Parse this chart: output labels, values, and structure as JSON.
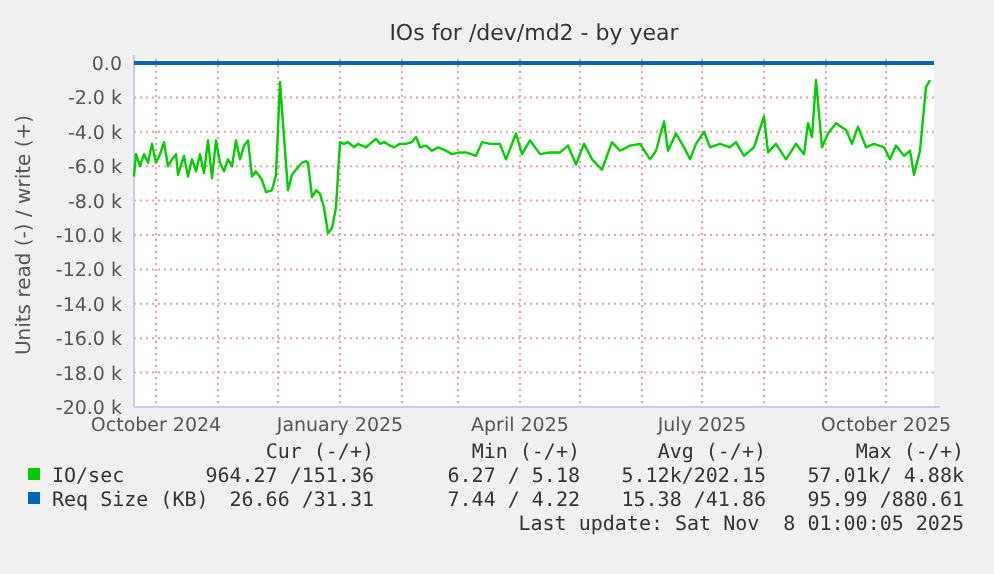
{
  "chart_data": {
    "type": "line",
    "title": "IOs for /dev/md2 - by year",
    "ylabel": "Units read (-) / write (+)",
    "xlim": [
      "2024-09-20",
      "2025-10-25"
    ],
    "xticks": [
      {
        "value": "2024-10-01",
        "label": "October 2024"
      },
      {
        "value": "2024-11-01",
        "label": null
      },
      {
        "value": "2024-12-01",
        "label": null
      },
      {
        "value": "2025-01-01",
        "label": "January 2025"
      },
      {
        "value": "2025-02-01",
        "label": null
      },
      {
        "value": "2025-03-01",
        "label": null
      },
      {
        "value": "2025-04-01",
        "label": "April 2025"
      },
      {
        "value": "2025-05-01",
        "label": null
      },
      {
        "value": "2025-06-01",
        "label": null
      },
      {
        "value": "2025-07-01",
        "label": "July 2025"
      },
      {
        "value": "2025-08-01",
        "label": null
      },
      {
        "value": "2025-09-01",
        "label": null
      },
      {
        "value": "2025-10-01",
        "label": "October 2025"
      }
    ],
    "ylim": [
      -20000,
      0
    ],
    "yticks": [
      {
        "value": 0,
        "label": "0.0"
      },
      {
        "value": -2000,
        "label": "-2.0 k"
      },
      {
        "value": -4000,
        "label": "-4.0 k"
      },
      {
        "value": -6000,
        "label": "-6.0 k"
      },
      {
        "value": -8000,
        "label": "-8.0 k"
      },
      {
        "value": -10000,
        "label": "-10.0 k"
      },
      {
        "value": -12000,
        "label": "-12.0 k"
      },
      {
        "value": -14000,
        "label": "-14.0 k"
      },
      {
        "value": -16000,
        "label": "-16.0 k"
      },
      {
        "value": -18000,
        "label": "-18.0 k"
      },
      {
        "value": -20000,
        "label": "-20.0 k"
      }
    ],
    "grid": true,
    "legend": "bottom",
    "series": [
      {
        "name": "IO/sec",
        "color": "#00cc00",
        "x": [
          "2024-09-20",
          "2024-09-21",
          "2024-09-23",
          "2024-09-25",
          "2024-09-27",
          "2024-09-29",
          "2024-10-01",
          "2024-10-03",
          "2024-10-05",
          "2024-10-07",
          "2024-10-09",
          "2024-10-11",
          "2024-10-12",
          "2024-10-15",
          "2024-10-17",
          "2024-10-19",
          "2024-10-21",
          "2024-10-23",
          "2024-10-25",
          "2024-10-27",
          "2024-10-29",
          "2024-10-31",
          "2024-11-02",
          "2024-11-04",
          "2024-11-06",
          "2024-11-08",
          "2024-11-10",
          "2024-11-12",
          "2024-11-14",
          "2024-11-16",
          "2024-11-18",
          "2024-11-20",
          "2024-11-23",
          "2024-11-25",
          "2024-11-28",
          "2024-11-30",
          "2024-12-02",
          "2024-12-04",
          "2024-12-06",
          "2024-12-08",
          "2024-12-10",
          "2024-12-13",
          "2024-12-15",
          "2024-12-16",
          "2024-12-18",
          "2024-12-20",
          "2024-12-22",
          "2024-12-24",
          "2024-12-26",
          "2024-12-28",
          "2024-12-30",
          "2025-01-01",
          "2025-01-03",
          "2025-01-05",
          "2025-01-08",
          "2025-01-10",
          "2025-01-12",
          "2025-01-14",
          "2025-01-17",
          "2025-01-19",
          "2025-01-21",
          "2025-01-23",
          "2025-01-26",
          "2025-01-28",
          "2025-01-31",
          "2025-02-03",
          "2025-02-06",
          "2025-02-08",
          "2025-02-10",
          "2025-02-13",
          "2025-02-16",
          "2025-02-19",
          "2025-02-23",
          "2025-02-26",
          "2025-03-02",
          "2025-03-05",
          "2025-03-10",
          "2025-03-13",
          "2025-03-17",
          "2025-03-22",
          "2025-03-25",
          "2025-03-30",
          "2025-04-02",
          "2025-04-06",
          "2025-04-11",
          "2025-04-16",
          "2025-04-21",
          "2025-04-25",
          "2025-04-29",
          "2025-05-03",
          "2025-05-07",
          "2025-05-12",
          "2025-05-17",
          "2025-05-21",
          "2025-05-26",
          "2025-05-31",
          "2025-06-05",
          "2025-06-08",
          "2025-06-12",
          "2025-06-14",
          "2025-06-18",
          "2025-06-22",
          "2025-06-25",
          "2025-06-28",
          "2025-07-02",
          "2025-07-05",
          "2025-07-10",
          "2025-07-15",
          "2025-07-18",
          "2025-07-22",
          "2025-07-27",
          "2025-08-01",
          "2025-08-03",
          "2025-08-07",
          "2025-08-12",
          "2025-08-17",
          "2025-08-21",
          "2025-08-23",
          "2025-08-25",
          "2025-08-27",
          "2025-08-30",
          "2025-09-02",
          "2025-09-06",
          "2025-09-11",
          "2025-09-14",
          "2025-09-17",
          "2025-09-21",
          "2025-09-25",
          "2025-09-30",
          "2025-10-03",
          "2025-10-06",
          "2025-10-10",
          "2025-10-13",
          "2025-10-15",
          "2025-10-18",
          "2025-10-21",
          "2025-10-23"
        ],
        "values": [
          -6600,
          -5300,
          -6000,
          -5300,
          -5800,
          -4700,
          -5800,
          -5300,
          -4600,
          -6000,
          -5600,
          -5300,
          -6500,
          -5400,
          -6600,
          -5600,
          -6300,
          -5300,
          -6400,
          -4500,
          -6700,
          -4500,
          -5800,
          -6300,
          -5600,
          -6000,
          -4500,
          -5600,
          -4800,
          -4500,
          -6600,
          -6300,
          -6800,
          -7500,
          -7400,
          -6500,
          -1100,
          -4300,
          -7400,
          -6500,
          -6200,
          -5800,
          -5700,
          -5800,
          -7800,
          -7400,
          -7600,
          -8400,
          -9900,
          -9600,
          -8400,
          -4600,
          -4700,
          -4600,
          -4900,
          -4700,
          -4800,
          -4900,
          -4600,
          -4400,
          -4700,
          -4600,
          -4800,
          -4900,
          -4700,
          -4700,
          -4600,
          -4300,
          -4900,
          -4800,
          -5100,
          -4900,
          -5100,
          -5300,
          -5200,
          -5200,
          -5400,
          -4600,
          -4700,
          -4700,
          -5600,
          -4100,
          -5300,
          -4500,
          -5300,
          -5200,
          -5200,
          -4800,
          -5900,
          -4700,
          -5600,
          -6200,
          -4600,
          -5100,
          -4800,
          -4700,
          -5600,
          -5100,
          -3400,
          -5100,
          -4100,
          -4900,
          -5600,
          -4700,
          -4000,
          -4900,
          -4700,
          -4900,
          -4600,
          -5400,
          -4900,
          -3100,
          -5200,
          -4700,
          -5600,
          -4700,
          -5300,
          -3500,
          -4300,
          -1000,
          -4900,
          -4100,
          -3500,
          -3900,
          -4700,
          -3700,
          -4900,
          -4700,
          -4900,
          -5600,
          -4800,
          -5400,
          -5100,
          -6500,
          -5100,
          -1400,
          -1000
        ]
      },
      {
        "name": "Req Size (KB)",
        "color": "#0066b3",
        "x": [
          "2024-09-20",
          "2025-10-25"
        ],
        "values": [
          0,
          0
        ]
      }
    ],
    "annotations": [
      "Cur (-/+)",
      "Min (-/+)",
      "Avg (-/+)",
      "Max (-/+)",
      "964.27 /151.36",
      "6.27 / 5.18",
      "5.12k/202.15",
      "57.01k/ 4.88k",
      "26.66 /31.31",
      "7.44 / 4.22",
      "15.38 /41.86",
      "95.99 /880.61",
      "Last update: Sat Nov  8 01:00:05 2025"
    ]
  }
}
